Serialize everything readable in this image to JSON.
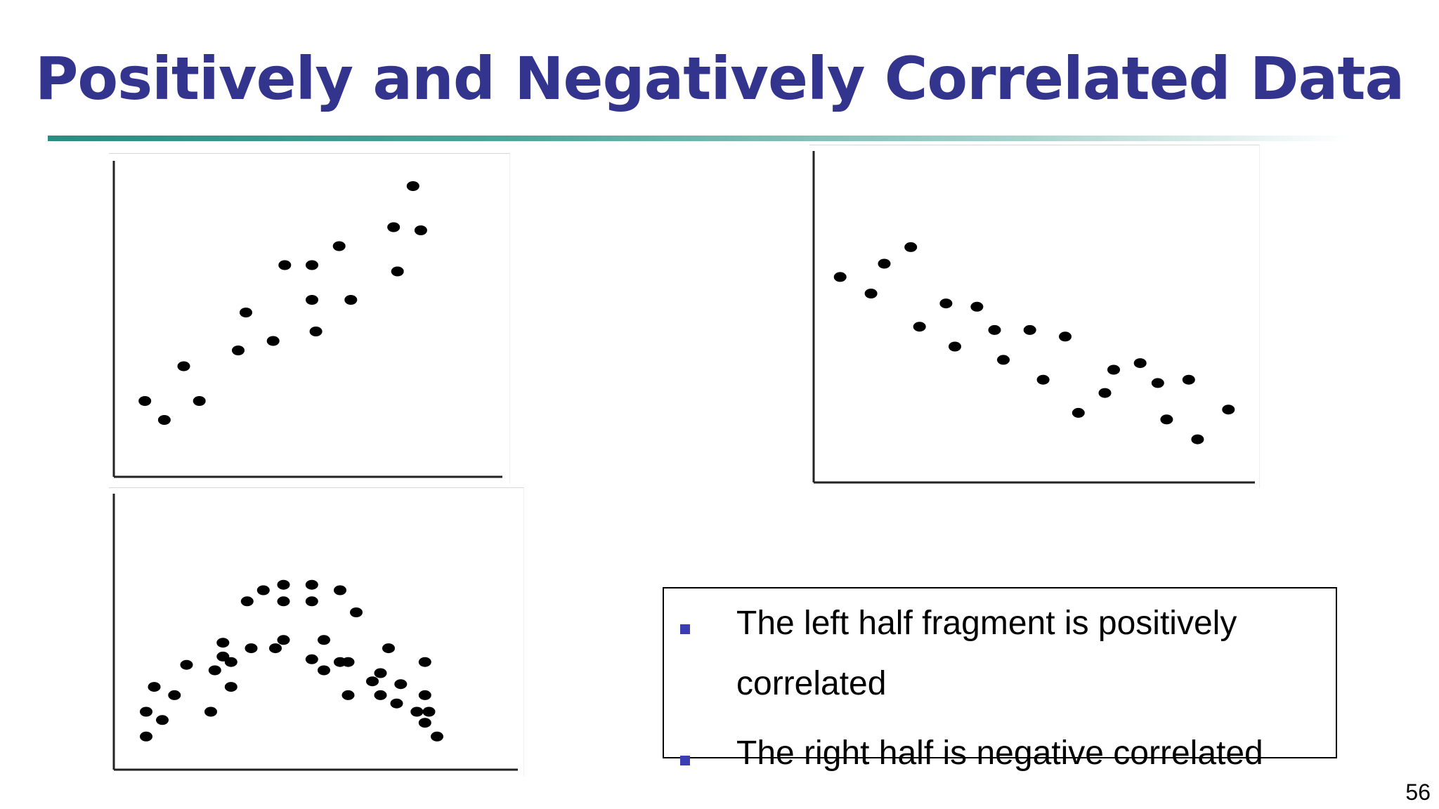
{
  "slide": {
    "title": "Positively and Negatively Correlated Data",
    "page_number": "56",
    "bullets": [
      "The left half fragment is positively correlated",
      "The right half is negative correlated"
    ],
    "colors": {
      "title": "#33348e",
      "bullet_mark": "#3b3db3",
      "points": "#000000"
    }
  },
  "chart_data": [
    {
      "type": "scatter",
      "title": "",
      "xlabel": "",
      "ylabel": "",
      "xlim": [
        0,
        100
      ],
      "ylim": [
        0,
        100
      ],
      "grid": false,
      "points": [
        [
          8,
          24
        ],
        [
          13,
          18
        ],
        [
          18,
          35
        ],
        [
          22,
          24
        ],
        [
          32,
          40
        ],
        [
          34,
          52
        ],
        [
          41,
          43
        ],
        [
          44,
          67
        ],
        [
          51,
          67
        ],
        [
          51,
          56
        ],
        [
          52,
          46
        ],
        [
          58,
          73
        ],
        [
          61,
          56
        ],
        [
          72,
          79
        ],
        [
          73,
          65
        ],
        [
          77,
          92
        ],
        [
          79,
          78
        ]
      ]
    },
    {
      "type": "scatter",
      "title": "",
      "xlabel": "",
      "ylabel": "",
      "xlim": [
        0,
        100
      ],
      "ylim": [
        0,
        100
      ],
      "grid": false,
      "points": [
        [
          6,
          62
        ],
        [
          13,
          57
        ],
        [
          16,
          66
        ],
        [
          22,
          71
        ],
        [
          24,
          47
        ],
        [
          30,
          54
        ],
        [
          32,
          41
        ],
        [
          37,
          53
        ],
        [
          41,
          46
        ],
        [
          43,
          37
        ],
        [
          49,
          46
        ],
        [
          52,
          31
        ],
        [
          57,
          44
        ],
        [
          60,
          21
        ],
        [
          66,
          27
        ],
        [
          68,
          34
        ],
        [
          74,
          36
        ],
        [
          78,
          30
        ],
        [
          80,
          19
        ],
        [
          85,
          31
        ],
        [
          87,
          13
        ],
        [
          94,
          22
        ]
      ]
    },
    {
      "type": "scatter",
      "title": "",
      "xlabel": "",
      "ylabel": "",
      "xlim": [
        0,
        100
      ],
      "ylim": [
        0,
        100
      ],
      "grid": false,
      "points": [
        [
          8,
          12
        ],
        [
          8,
          21
        ],
        [
          10,
          30
        ],
        [
          12,
          18
        ],
        [
          15,
          27
        ],
        [
          18,
          38
        ],
        [
          24,
          21
        ],
        [
          25,
          36
        ],
        [
          27,
          46
        ],
        [
          27,
          41
        ],
        [
          29,
          30
        ],
        [
          29,
          39
        ],
        [
          33,
          61
        ],
        [
          34,
          44
        ],
        [
          37,
          65
        ],
        [
          40,
          44
        ],
        [
          42,
          47
        ],
        [
          42,
          67
        ],
        [
          42,
          61
        ],
        [
          49,
          40
        ],
        [
          49,
          67
        ],
        [
          49,
          61
        ],
        [
          52,
          47
        ],
        [
          52,
          36
        ],
        [
          56,
          39
        ],
        [
          56,
          65
        ],
        [
          58,
          27
        ],
        [
          58,
          39
        ],
        [
          60,
          57
        ],
        [
          64,
          32
        ],
        [
          66,
          27
        ],
        [
          66,
          35
        ],
        [
          68,
          44
        ],
        [
          70,
          24
        ],
        [
          71,
          31
        ],
        [
          75,
          21
        ],
        [
          77,
          39
        ],
        [
          77,
          27
        ],
        [
          77,
          17
        ],
        [
          78,
          21
        ],
        [
          80,
          12
        ]
      ]
    }
  ]
}
